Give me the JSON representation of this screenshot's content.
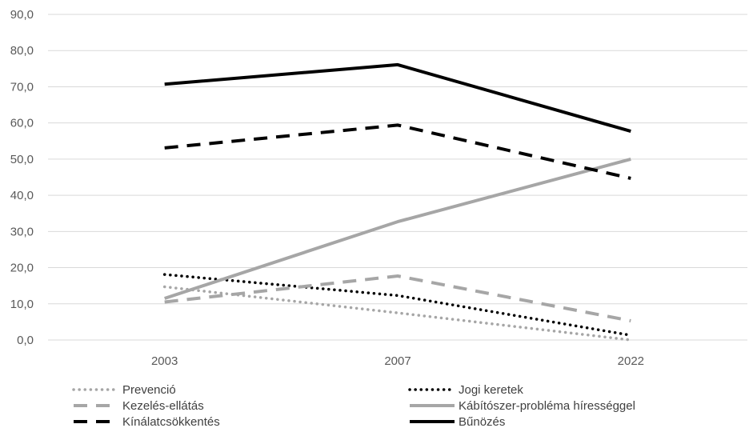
{
  "chart_data": {
    "type": "line",
    "title": "",
    "xlabel": "",
    "ylabel": "",
    "categories": [
      "2003",
      "2007",
      "2022"
    ],
    "ylim": [
      0,
      90
    ],
    "yticks": [
      "0,0",
      "10,0",
      "20,0",
      "30,0",
      "40,0",
      "50,0",
      "60,0",
      "70,0",
      "80,0",
      "90,0"
    ],
    "grid": "horizontal",
    "legend_position": "bottom",
    "series": [
      {
        "name": "Prevenció",
        "values": [
          14.7,
          7.5,
          0.0
        ],
        "color": "#a6a6a6",
        "style": "dotted"
      },
      {
        "name": "Jogi keretek",
        "values": [
          18.1,
          12.3,
          1.3
        ],
        "color": "#000000",
        "style": "dotted"
      },
      {
        "name": "Kezelés-ellátás",
        "values": [
          10.5,
          17.7,
          5.3
        ],
        "color": "#a6a6a6",
        "style": "dashed"
      },
      {
        "name": "Kábítószer-probléma hírességgel",
        "values": [
          11.5,
          32.7,
          50.0
        ],
        "color": "#a6a6a6",
        "style": "solid"
      },
      {
        "name": "Kínálatcsökkentés",
        "values": [
          53.1,
          59.4,
          44.7
        ],
        "color": "#000000",
        "style": "dashed"
      },
      {
        "name": "Bűnözés",
        "values": [
          70.7,
          76.1,
          57.7
        ],
        "color": "#000000",
        "style": "solid"
      }
    ]
  }
}
